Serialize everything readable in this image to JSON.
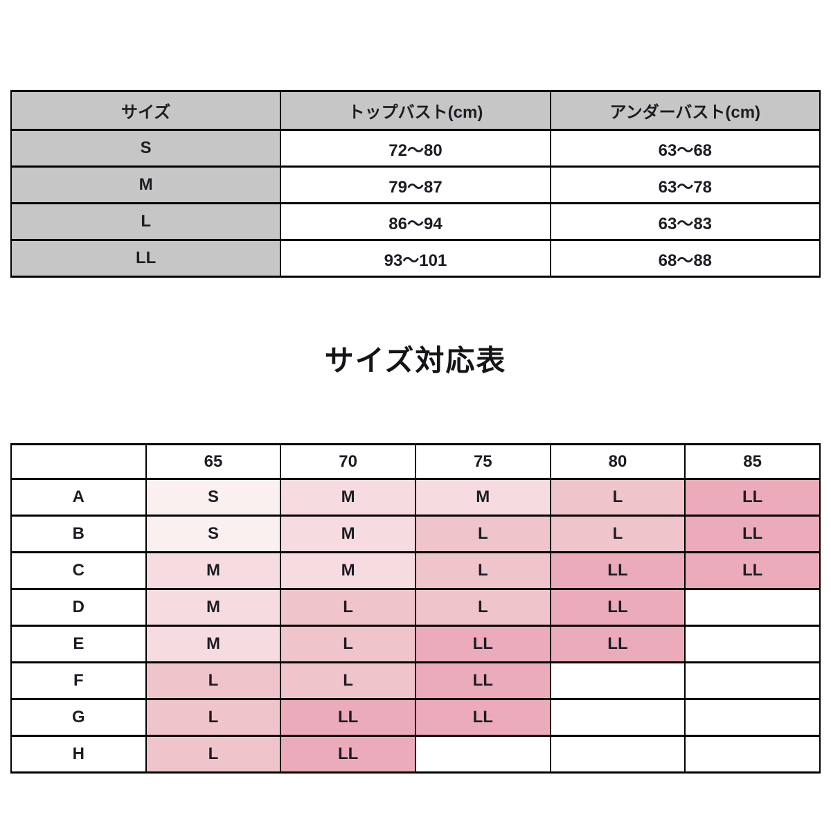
{
  "page": {
    "background": "#ffffff",
    "text_color": "#1c1c24",
    "border_color": "#000000"
  },
  "size_table": {
    "header_bg": "#c6c6c6",
    "headers": [
      "サイズ",
      "トップバスト(cm)",
      "アンダーバスト(cm)"
    ],
    "rows": [
      {
        "size": "S",
        "top_bust": "72〜80",
        "under_bust": "63〜68"
      },
      {
        "size": "M",
        "top_bust": "79〜87",
        "under_bust": "63〜78"
      },
      {
        "size": "L",
        "top_bust": "86〜94",
        "under_bust": "63〜83"
      },
      {
        "size": "LL",
        "top_bust": "93〜101",
        "under_bust": "68〜88"
      }
    ]
  },
  "matrix_section": {
    "title": "サイズ対応表",
    "col_headers": [
      "",
      "65",
      "70",
      "75",
      "80",
      "85"
    ],
    "row_headers": [
      "A",
      "B",
      "C",
      "D",
      "E",
      "F",
      "G",
      "H"
    ],
    "cells": [
      [
        "S",
        "M",
        "M",
        "L",
        "LL"
      ],
      [
        "S",
        "M",
        "L",
        "L",
        "LL"
      ],
      [
        "M",
        "M",
        "L",
        "LL",
        "LL"
      ],
      [
        "M",
        "L",
        "L",
        "LL",
        ""
      ],
      [
        "M",
        "L",
        "LL",
        "LL",
        ""
      ],
      [
        "L",
        "L",
        "LL",
        "",
        ""
      ],
      [
        "L",
        "LL",
        "LL",
        "",
        ""
      ],
      [
        "L",
        "LL",
        "",
        "",
        ""
      ]
    ],
    "size_colors": {
      "S": "#faf0f0",
      "M": "#f6dce0",
      "L": "#f0c4cb",
      "LL": "#ecabba",
      "": "#ffffff"
    }
  }
}
